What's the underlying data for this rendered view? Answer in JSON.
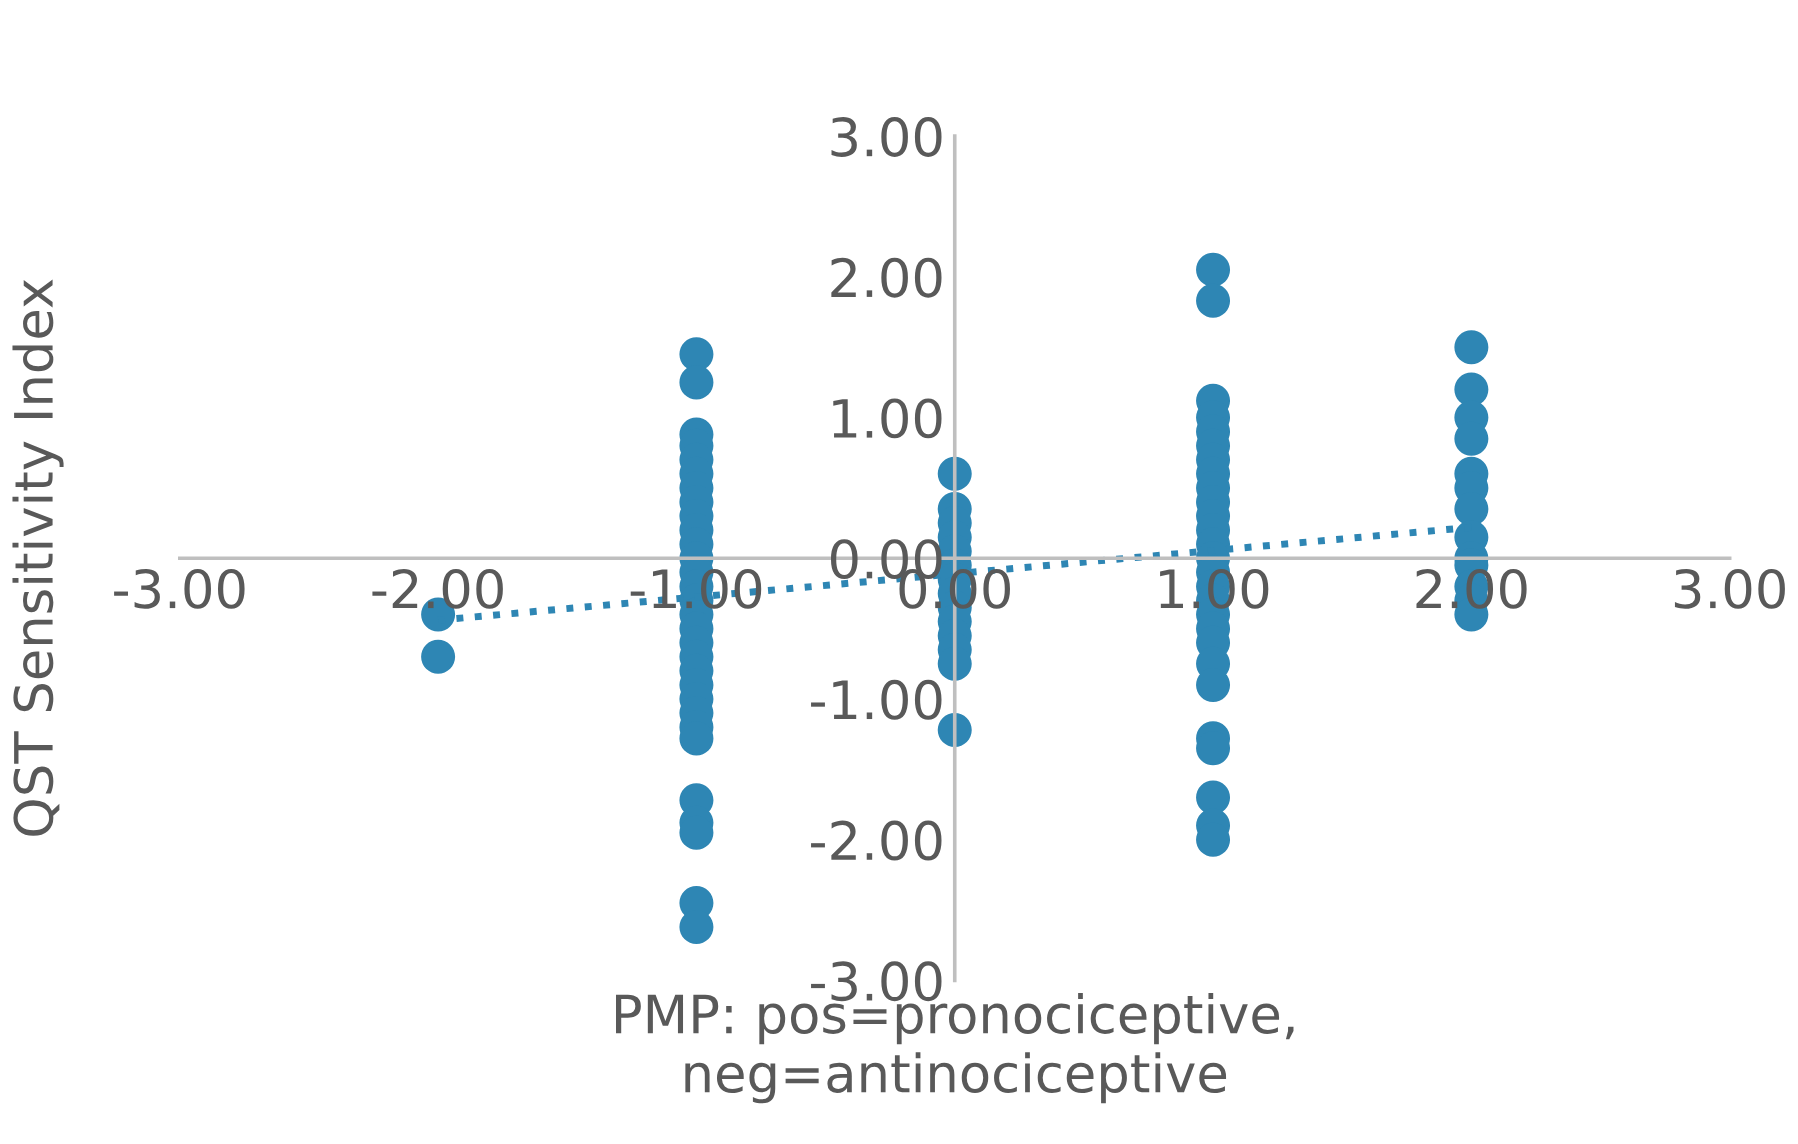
{
  "chart_data": {
    "type": "scatter",
    "xlabel": "PMP: pos=pronociceptive,\nneg=antinociceptive",
    "ylabel": "QST Sensitivity Index",
    "xlim": [
      -3,
      3
    ],
    "ylim": [
      -3,
      3
    ],
    "xticks": [
      {
        "value": -3,
        "label": "-3.00"
      },
      {
        "value": -2,
        "label": "-2.00"
      },
      {
        "value": -1,
        "label": "-1.00"
      },
      {
        "value": 0,
        "label": "0.00"
      },
      {
        "value": 1,
        "label": "1.00"
      },
      {
        "value": 2,
        "label": "2.00"
      },
      {
        "value": 3,
        "label": "3.00"
      }
    ],
    "yticks": [
      {
        "value": -3,
        "label": "-3.00"
      },
      {
        "value": -2,
        "label": "-2.00"
      },
      {
        "value": -1,
        "label": "-1.00"
      },
      {
        "value": 0,
        "label": "0.00"
      },
      {
        "value": 1,
        "label": "1.00"
      },
      {
        "value": 2,
        "label": "2.00"
      },
      {
        "value": 3,
        "label": "3.00"
      }
    ],
    "grid": false,
    "series": [
      {
        "color": "#2e86b4",
        "marker": "circle",
        "x": [
          -2,
          -2,
          -1,
          -1,
          -1,
          -1,
          -1,
          -1,
          -1,
          -1,
          -1,
          -1,
          -1,
          -1,
          -1,
          -1,
          -1,
          -1,
          -1,
          -1,
          -1,
          -1,
          -1,
          -1,
          -1,
          -1,
          -1,
          -1,
          -1,
          -1,
          -1,
          -1,
          0,
          0,
          0,
          0,
          0,
          0,
          0,
          0,
          0,
          0,
          0,
          0,
          0,
          0,
          1,
          1,
          1,
          1,
          1,
          1,
          1,
          1,
          1,
          1,
          1,
          1,
          1,
          1,
          1,
          1,
          1,
          1,
          1,
          1,
          1,
          1,
          1,
          1,
          1,
          1,
          1,
          2,
          2,
          2,
          2,
          2,
          2,
          2,
          2,
          2,
          2,
          2,
          2,
          2
        ],
        "values": [
          -0.4,
          -0.7,
          1.45,
          1.25,
          0.88,
          0.8,
          0.7,
          0.6,
          0.5,
          0.4,
          0.3,
          0.2,
          0.1,
          0.0,
          -0.1,
          -0.2,
          -0.3,
          -0.4,
          -0.5,
          -0.6,
          -0.7,
          -0.8,
          -0.9,
          -1.0,
          -1.1,
          -1.2,
          -1.28,
          -1.72,
          -1.88,
          -1.95,
          -2.45,
          -2.62,
          0.6,
          0.35,
          0.25,
          0.15,
          0.05,
          -0.05,
          -0.15,
          -0.25,
          -0.35,
          -0.45,
          -0.55,
          -0.65,
          -0.75,
          -1.22,
          2.05,
          1.83,
          1.12,
          1.0,
          0.9,
          0.8,
          0.7,
          0.6,
          0.5,
          0.4,
          0.3,
          0.2,
          0.1,
          0.0,
          -0.1,
          -0.2,
          -0.3,
          -0.4,
          -0.5,
          -0.6,
          -0.75,
          -0.9,
          -1.28,
          -1.35,
          -1.7,
          -1.9,
          -2.0,
          1.5,
          1.2,
          1.0,
          0.85,
          0.6,
          0.5,
          0.35,
          0.15,
          0.0,
          -0.05,
          -0.2,
          -0.3,
          -0.4
        ]
      },
      {
        "type": "line",
        "color": "#2e86b4",
        "line_style": "dotted",
        "marker": "none",
        "x": [
          -2,
          2
        ],
        "values": [
          -0.44,
          0.22
        ]
      }
    ]
  }
}
